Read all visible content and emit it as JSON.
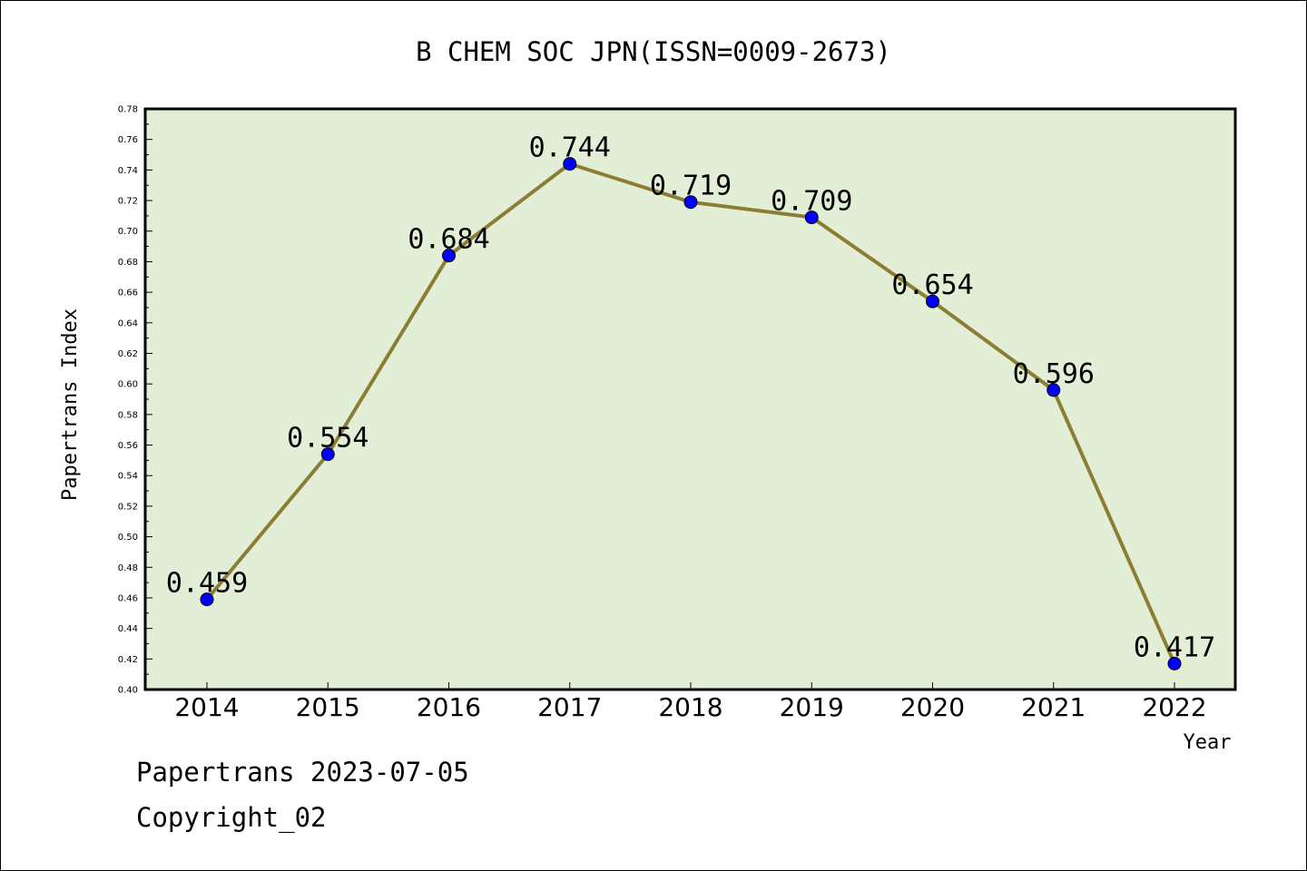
{
  "chart_data": {
    "type": "line",
    "title": "B CHEM SOC JPN(ISSN=0009-2673)",
    "xlabel": "Year",
    "ylabel": "Papertrans Index",
    "categories": [
      "2014",
      "2015",
      "2016",
      "2017",
      "2018",
      "2019",
      "2020",
      "2021",
      "2022"
    ],
    "series": [
      {
        "values": [
          0.459,
          0.554,
          0.684,
          0.744,
          0.719,
          0.709,
          0.654,
          0.596,
          0.417
        ],
        "data_labels": [
          "0.459",
          "0.554",
          "0.684",
          "0.744",
          "0.719",
          "0.709",
          "0.654",
          "0.596",
          "0.417"
        ]
      }
    ],
    "ylim": [
      0.4,
      0.78
    ],
    "yticks": [
      "0.40",
      "0.42",
      "0.44",
      "0.46",
      "0.48",
      "0.50",
      "0.52",
      "0.54",
      "0.56",
      "0.58",
      "0.60",
      "0.62",
      "0.64",
      "0.66",
      "0.68",
      "0.70",
      "0.72",
      "0.74",
      "0.76",
      "0.78"
    ],
    "grid": false,
    "legend": "none",
    "colors": {
      "plot_background": "#e2efd6",
      "line": "#8b7d34",
      "marker": "#0000ff"
    }
  },
  "footer": {
    "line1": "Papertrans 2023-07-05",
    "line2": "Copyright_02"
  }
}
